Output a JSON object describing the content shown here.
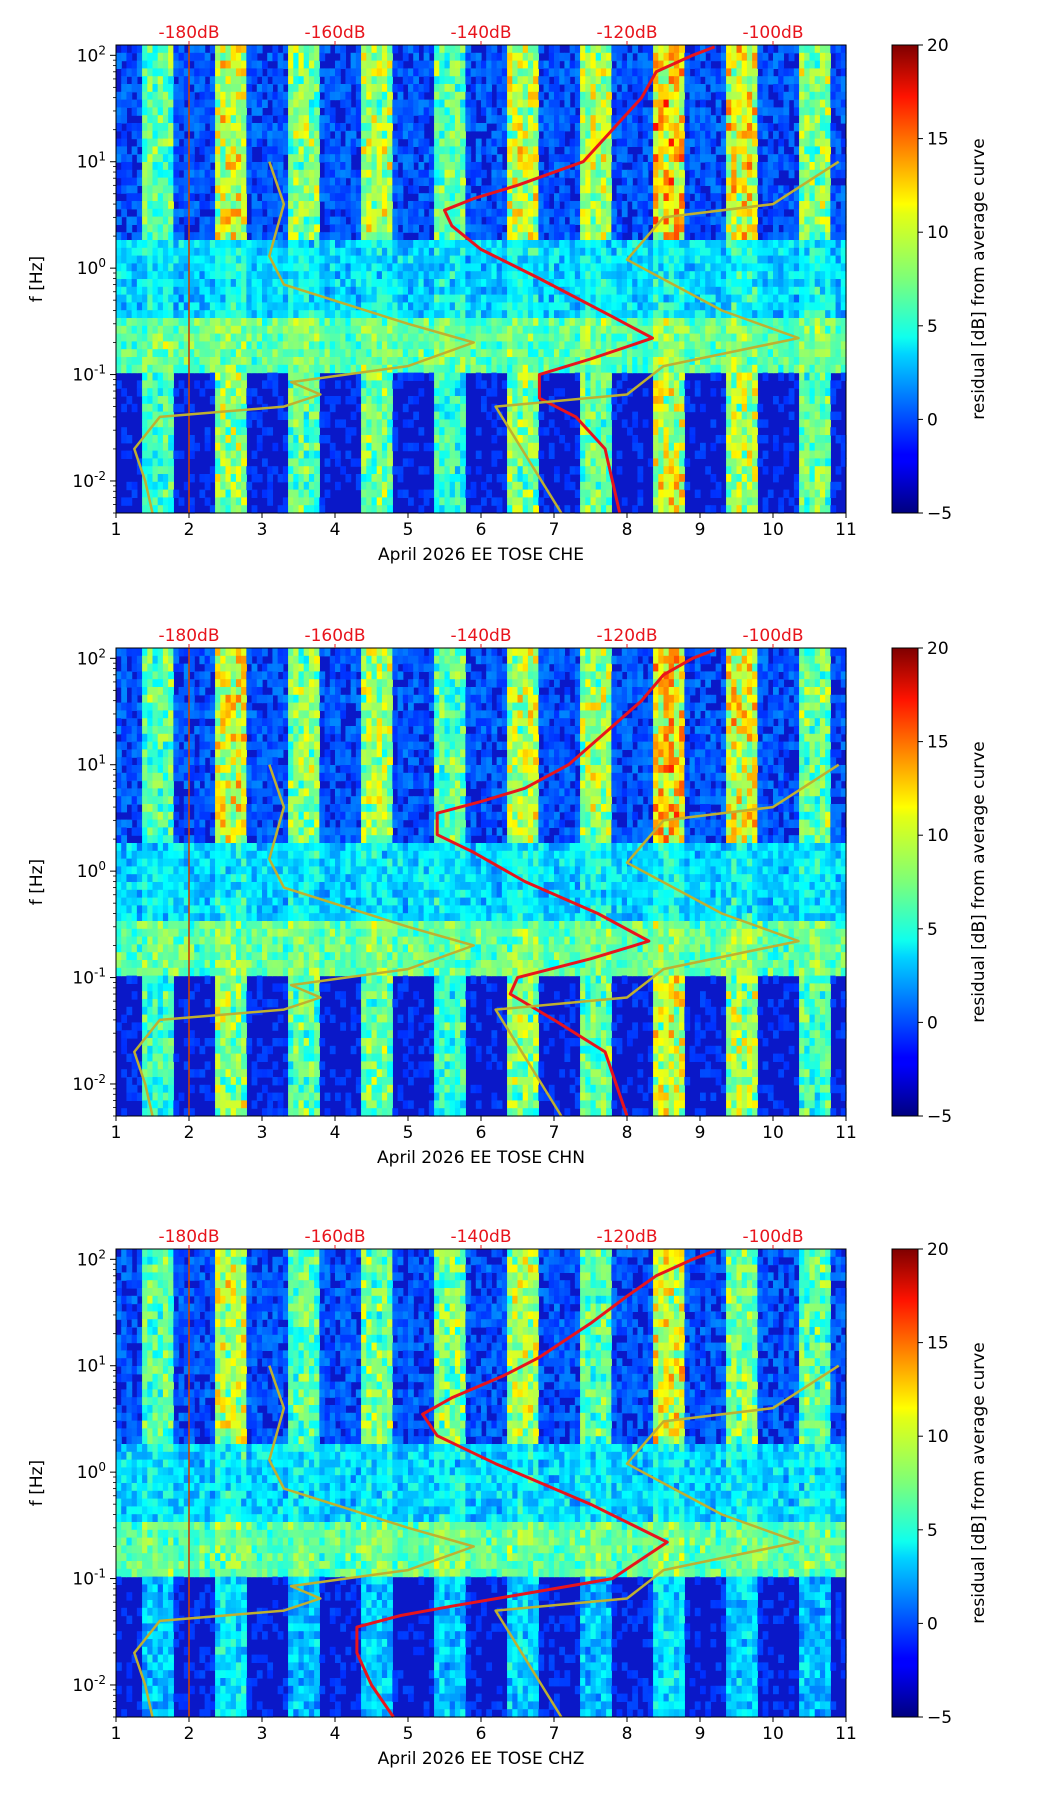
{
  "figure": {
    "description_free": true
  },
  "colorbar": {
    "label": "residual [dB] from average curve",
    "min": -5,
    "max": 20,
    "ticks": [
      -5,
      0,
      5,
      10,
      15,
      20
    ],
    "colormap": "jet"
  },
  "chart_data": [
    {
      "type": "heatmap",
      "panel": "CHE",
      "xlabel": "April 2026 EE TOSE  CHE",
      "ylabel": "f [Hz]",
      "x_range": [
        1,
        11
      ],
      "x_ticks": [
        1,
        2,
        3,
        4,
        5,
        6,
        7,
        8,
        9,
        10,
        11
      ],
      "y_scale": "log",
      "y_range": [
        0.005,
        125
      ],
      "y_ticks": [
        "10^-2",
        "10^-1",
        "10^0",
        "10^1",
        "10^2"
      ],
      "top_axis_labels": [
        "-180dB",
        "-160dB",
        "-140dB",
        "-120dB",
        "-100dB"
      ],
      "top_axis_positions_day": [
        2,
        4,
        6,
        8,
        10
      ],
      "series": [
        {
          "name": "median PSD (red)",
          "color": "#e8141c",
          "points": [
            [
              7.9,
              0.005
            ],
            [
              7.7,
              0.02
            ],
            [
              7.3,
              0.04
            ],
            [
              6.8,
              0.06
            ],
            [
              6.8,
              0.1
            ],
            [
              7.5,
              0.14
            ],
            [
              8.35,
              0.22
            ],
            [
              7.8,
              0.35
            ],
            [
              6.8,
              0.8
            ],
            [
              6.0,
              1.5
            ],
            [
              5.6,
              2.5
            ],
            [
              5.5,
              3.5
            ],
            [
              5.9,
              4.5
            ],
            [
              6.5,
              6
            ],
            [
              7.4,
              10
            ],
            [
              7.8,
              20
            ],
            [
              8.2,
              40
            ],
            [
              8.4,
              70
            ],
            [
              8.9,
              100
            ],
            [
              9.2,
              120
            ]
          ]
        },
        {
          "name": "noise model (olive)",
          "color": "#bfb030",
          "points": [
            [
              1.5,
              0.005
            ],
            [
              1.4,
              0.01
            ],
            [
              1.25,
              0.02
            ],
            [
              1.6,
              0.04
            ],
            [
              3.3,
              0.05
            ],
            [
              3.8,
              0.065
            ],
            [
              3.4,
              0.085
            ],
            [
              5.0,
              0.12
            ],
            [
              5.9,
              0.2
            ],
            [
              5.0,
              0.3
            ],
            [
              3.3,
              0.7
            ],
            [
              3.1,
              1.3
            ],
            [
              3.3,
              4
            ],
            [
              3.1,
              10
            ],
            [
              null,
              null
            ],
            [
              7.1,
              0.005
            ],
            [
              6.2,
              0.05
            ],
            [
              8.0,
              0.065
            ],
            [
              8.5,
              0.12
            ],
            [
              10.35,
              0.22
            ],
            [
              9.3,
              0.4
            ],
            [
              8.0,
              1.2
            ],
            [
              8.5,
              3
            ],
            [
              10.0,
              4
            ],
            [
              10.9,
              10
            ]
          ]
        }
      ],
      "stripe_intensity_by_day": [
        0.55,
        0.8,
        0.65,
        0.7,
        0.55,
        0.75,
        0.7,
        0.95,
        0.85,
        0.65
      ]
    },
    {
      "type": "heatmap",
      "panel": "CHN",
      "xlabel": "April 2026 EE TOSE  CHN",
      "ylabel": "f [Hz]",
      "x_range": [
        1,
        11
      ],
      "x_ticks": [
        1,
        2,
        3,
        4,
        5,
        6,
        7,
        8,
        9,
        10,
        11
      ],
      "y_scale": "log",
      "y_range": [
        0.005,
        125
      ],
      "y_ticks": [
        "10^-2",
        "10^-1",
        "10^0",
        "10^1",
        "10^2"
      ],
      "top_axis_labels": [
        "-180dB",
        "-160dB",
        "-140dB",
        "-120dB",
        "-100dB"
      ],
      "top_axis_positions_day": [
        2,
        4,
        6,
        8,
        10
      ],
      "series": [
        {
          "name": "median PSD (red)",
          "color": "#e8141c",
          "points": [
            [
              8.0,
              0.005
            ],
            [
              7.7,
              0.02
            ],
            [
              7.0,
              0.04
            ],
            [
              6.4,
              0.07
            ],
            [
              6.5,
              0.1
            ],
            [
              7.5,
              0.15
            ],
            [
              8.3,
              0.22
            ],
            [
              7.6,
              0.4
            ],
            [
              6.6,
              0.8
            ],
            [
              5.9,
              1.5
            ],
            [
              5.4,
              2.2
            ],
            [
              5.4,
              3.5
            ],
            [
              6.0,
              4.5
            ],
            [
              6.6,
              6
            ],
            [
              7.2,
              10
            ],
            [
              7.7,
              20
            ],
            [
              8.2,
              40
            ],
            [
              8.5,
              70
            ],
            [
              8.9,
              100
            ],
            [
              9.2,
              120
            ]
          ]
        },
        {
          "name": "noise model (olive)",
          "color": "#bfb030",
          "points": [
            [
              1.5,
              0.005
            ],
            [
              1.4,
              0.01
            ],
            [
              1.25,
              0.02
            ],
            [
              1.6,
              0.04
            ],
            [
              3.3,
              0.05
            ],
            [
              3.8,
              0.065
            ],
            [
              3.4,
              0.085
            ],
            [
              5.0,
              0.12
            ],
            [
              5.9,
              0.2
            ],
            [
              5.0,
              0.3
            ],
            [
              3.3,
              0.7
            ],
            [
              3.1,
              1.3
            ],
            [
              3.3,
              4
            ],
            [
              3.1,
              10
            ],
            [
              null,
              null
            ],
            [
              7.1,
              0.005
            ],
            [
              6.2,
              0.05
            ],
            [
              8.0,
              0.065
            ],
            [
              8.5,
              0.12
            ],
            [
              10.35,
              0.22
            ],
            [
              9.3,
              0.4
            ],
            [
              8.0,
              1.2
            ],
            [
              8.5,
              3
            ],
            [
              10.0,
              4
            ],
            [
              10.9,
              10
            ]
          ]
        }
      ],
      "stripe_intensity_by_day": [
        0.55,
        0.8,
        0.65,
        0.7,
        0.55,
        0.75,
        0.7,
        0.95,
        0.85,
        0.6
      ]
    },
    {
      "type": "heatmap",
      "panel": "CHZ",
      "xlabel": "April 2026 EE TOSE  CHZ",
      "ylabel": "f [Hz]",
      "x_range": [
        1,
        11
      ],
      "x_ticks": [
        1,
        2,
        3,
        4,
        5,
        6,
        7,
        8,
        9,
        10,
        11
      ],
      "y_scale": "log",
      "y_range": [
        0.005,
        125
      ],
      "y_ticks": [
        "10^-2",
        "10^-1",
        "10^0",
        "10^1",
        "10^2"
      ],
      "top_axis_labels": [
        "-180dB",
        "-160dB",
        "-140dB",
        "-120dB",
        "-100dB"
      ],
      "top_axis_positions_day": [
        2,
        4,
        6,
        8,
        10
      ],
      "series": [
        {
          "name": "median PSD (red)",
          "color": "#e8141c",
          "points": [
            [
              4.8,
              0.005
            ],
            [
              4.5,
              0.01
            ],
            [
              4.3,
              0.02
            ],
            [
              4.3,
              0.035
            ],
            [
              4.9,
              0.045
            ],
            [
              5.6,
              0.055
            ],
            [
              6.5,
              0.07
            ],
            [
              7.8,
              0.1
            ],
            [
              8.55,
              0.22
            ],
            [
              7.5,
              0.5
            ],
            [
              6.2,
              1.2
            ],
            [
              5.4,
              2.2
            ],
            [
              5.2,
              3.5
            ],
            [
              5.6,
              5
            ],
            [
              6.3,
              8
            ],
            [
              6.8,
              12
            ],
            [
              7.5,
              25
            ],
            [
              8.0,
              45
            ],
            [
              8.4,
              70
            ],
            [
              8.9,
              100
            ],
            [
              9.2,
              120
            ]
          ]
        },
        {
          "name": "noise model (olive)",
          "color": "#bfb030",
          "points": [
            [
              1.5,
              0.005
            ],
            [
              1.4,
              0.01
            ],
            [
              1.25,
              0.02
            ],
            [
              1.6,
              0.04
            ],
            [
              3.3,
              0.05
            ],
            [
              3.8,
              0.065
            ],
            [
              3.4,
              0.085
            ],
            [
              5.0,
              0.12
            ],
            [
              5.9,
              0.2
            ],
            [
              5.0,
              0.3
            ],
            [
              3.3,
              0.7
            ],
            [
              3.1,
              1.3
            ],
            [
              3.3,
              4
            ],
            [
              3.1,
              10
            ],
            [
              null,
              null
            ],
            [
              7.1,
              0.005
            ],
            [
              6.2,
              0.05
            ],
            [
              8.0,
              0.065
            ],
            [
              8.5,
              0.12
            ],
            [
              10.35,
              0.22
            ],
            [
              9.3,
              0.4
            ],
            [
              8.0,
              1.2
            ],
            [
              8.5,
              3
            ],
            [
              10.0,
              4
            ],
            [
              10.9,
              10
            ]
          ]
        }
      ],
      "stripe_intensity_by_day": [
        0.55,
        0.75,
        0.55,
        0.6,
        0.6,
        0.7,
        0.55,
        0.8,
        0.6,
        0.55
      ]
    }
  ]
}
